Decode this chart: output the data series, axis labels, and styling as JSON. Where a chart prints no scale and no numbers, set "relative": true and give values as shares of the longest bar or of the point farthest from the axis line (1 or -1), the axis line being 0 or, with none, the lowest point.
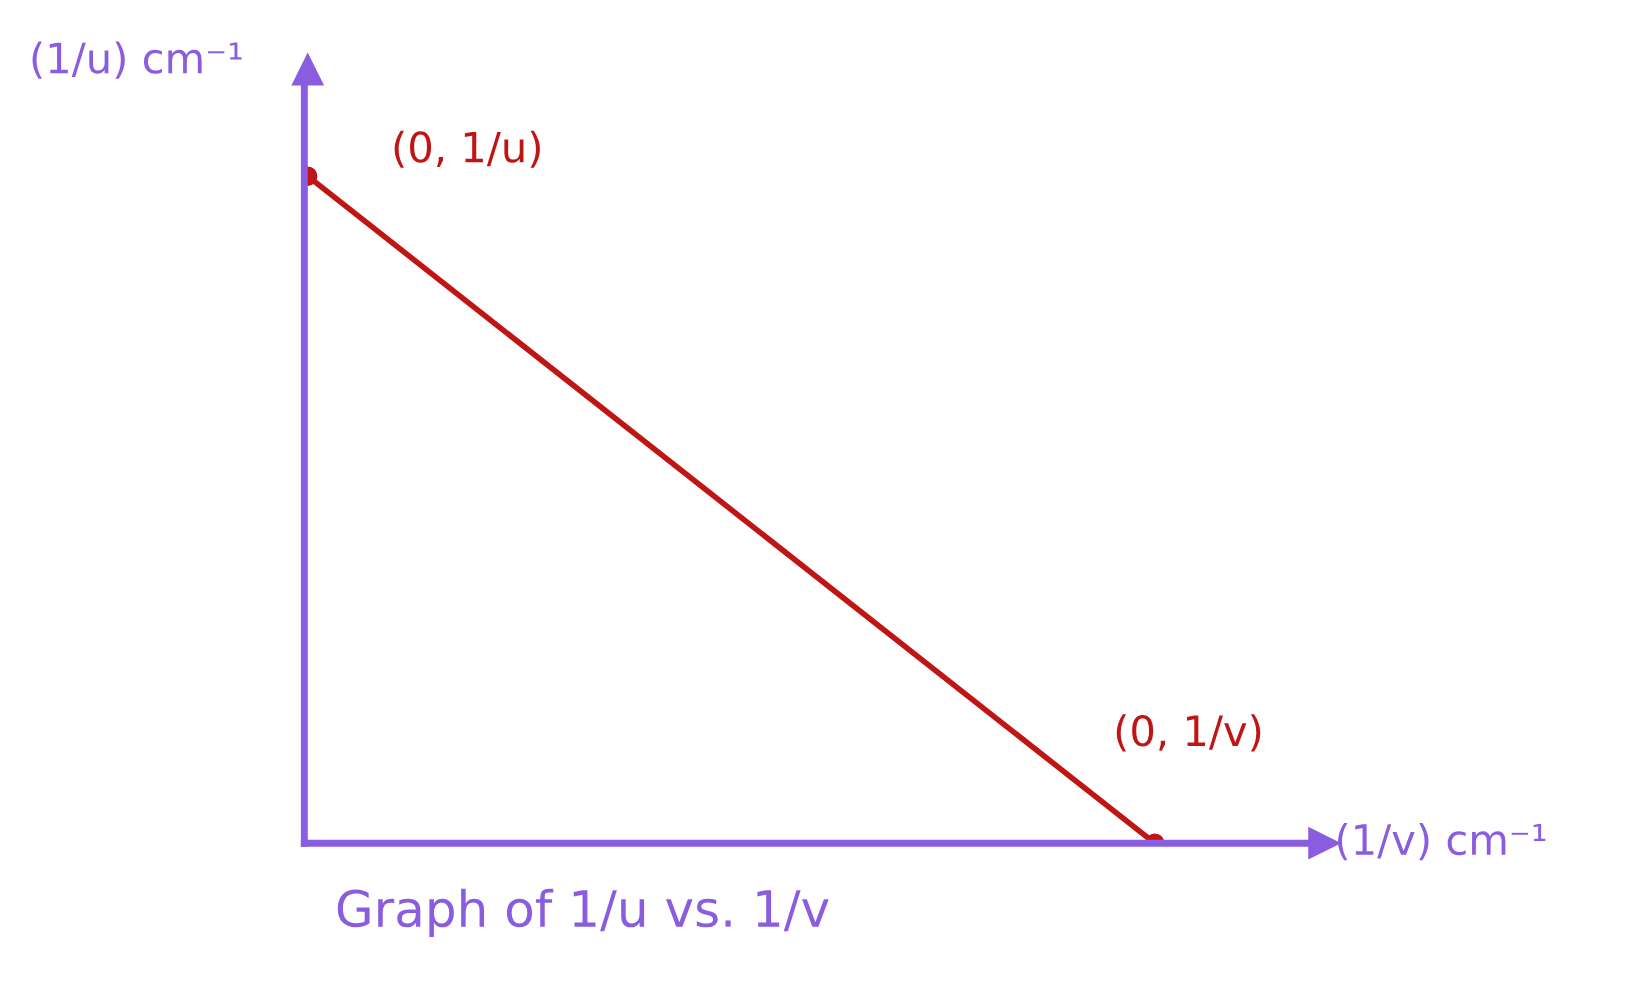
{
  "chart_data": {
    "type": "line",
    "title": "Graph of 1/u vs. 1/v",
    "xlabel": "(1/v) cm⁻¹",
    "ylabel": "(1/u) cm⁻¹",
    "relative": true,
    "categories": [
      null,
      null
    ],
    "series": [
      {
        "color": "#c01515",
        "values": [
          1,
          0
        ]
      }
    ],
    "marker": "circle",
    "line_style": "solid",
    "annotations": [
      "(0, 1/u)",
      "(0, 1/v)"
    ]
  }
}
